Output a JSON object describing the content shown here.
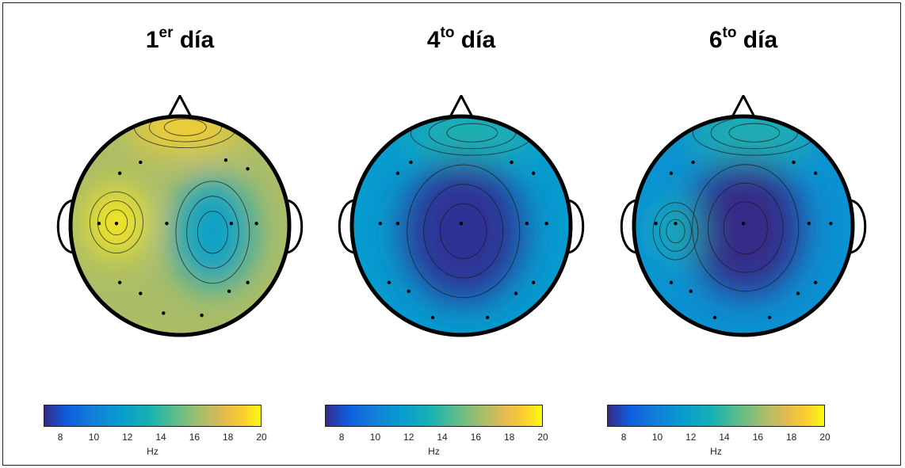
{
  "chart_data": [
    {
      "type": "heatmap",
      "title": "1",
      "title_sup": "er",
      "title_rest": " día",
      "colorbar": {
        "ticks": [
          "8",
          "10",
          "12",
          "14",
          "16",
          "18",
          "20"
        ],
        "label": "Hz",
        "range": [
          7,
          20
        ]
      },
      "background_hz": 16.5,
      "blobs": [
        {
          "cx": -0.58,
          "cy": -0.03,
          "rx": 0.26,
          "ry": 0.3,
          "hz": 19.6
        },
        {
          "cx": 0.3,
          "cy": 0.06,
          "rx": 0.36,
          "ry": 0.5,
          "hz": 12.0
        },
        {
          "cx": 0.05,
          "cy": -0.9,
          "rx": 0.5,
          "ry": 0.2,
          "hz": 19.0
        }
      ],
      "electrodes": [
        [
          -0.36,
          -0.58
        ],
        [
          -0.55,
          -0.48
        ],
        [
          0.42,
          -0.6
        ],
        [
          0.62,
          -0.52
        ],
        [
          -0.74,
          -0.02
        ],
        [
          -0.58,
          -0.02
        ],
        [
          -0.12,
          -0.02
        ],
        [
          0.47,
          -0.02
        ],
        [
          0.7,
          -0.02
        ],
        [
          -0.55,
          0.52
        ],
        [
          -0.36,
          0.62
        ],
        [
          0.45,
          0.6
        ],
        [
          0.62,
          0.52
        ],
        [
          -0.15,
          0.8
        ],
        [
          0.2,
          0.82
        ]
      ]
    },
    {
      "type": "heatmap",
      "title": "4",
      "title_sup": "to",
      "title_rest": " día",
      "colorbar": {
        "ticks": [
          "8",
          "10",
          "12",
          "14",
          "16",
          "18",
          "20"
        ],
        "label": "Hz",
        "range": [
          7,
          20
        ]
      },
      "background_hz": 11.5,
      "blobs": [
        {
          "cx": 0.02,
          "cy": 0.05,
          "rx": 0.55,
          "ry": 0.65,
          "hz": 7.2
        },
        {
          "cx": 0.1,
          "cy": -0.85,
          "rx": 0.6,
          "ry": 0.22,
          "hz": 13.5
        }
      ],
      "electrodes": [
        [
          -0.58,
          -0.48
        ],
        [
          -0.46,
          -0.58
        ],
        [
          0.46,
          -0.58
        ],
        [
          0.66,
          -0.48
        ],
        [
          -0.74,
          -0.02
        ],
        [
          -0.58,
          -0.02
        ],
        [
          0.0,
          -0.02
        ],
        [
          0.6,
          -0.02
        ],
        [
          0.78,
          -0.02
        ],
        [
          -0.66,
          0.52
        ],
        [
          -0.48,
          0.6
        ],
        [
          0.5,
          0.62
        ],
        [
          0.66,
          0.52
        ],
        [
          -0.26,
          0.84
        ],
        [
          0.24,
          0.84
        ]
      ]
    },
    {
      "type": "heatmap",
      "title": "6",
      "title_sup": "to",
      "title_rest": " día",
      "colorbar": {
        "ticks": [
          "8",
          "10",
          "12",
          "14",
          "16",
          "18",
          "20"
        ],
        "label": "Hz",
        "range": [
          7,
          20
        ]
      },
      "background_hz": 11.0,
      "blobs": [
        {
          "cx": 0.02,
          "cy": 0.02,
          "rx": 0.52,
          "ry": 0.62,
          "hz": 7.0
        },
        {
          "cx": -0.62,
          "cy": 0.05,
          "rx": 0.22,
          "ry": 0.28,
          "hz": 13.0
        },
        {
          "cx": 0.1,
          "cy": -0.85,
          "rx": 0.6,
          "ry": 0.22,
          "hz": 13.5
        }
      ],
      "electrodes": [
        [
          -0.66,
          -0.48
        ],
        [
          -0.46,
          -0.58
        ],
        [
          0.46,
          -0.58
        ],
        [
          0.66,
          -0.48
        ],
        [
          -0.8,
          -0.02
        ],
        [
          -0.62,
          -0.02
        ],
        [
          0.0,
          -0.02
        ],
        [
          0.6,
          -0.02
        ],
        [
          0.8,
          -0.02
        ],
        [
          -0.66,
          0.52
        ],
        [
          -0.48,
          0.6
        ],
        [
          0.5,
          0.62
        ],
        [
          0.66,
          0.52
        ],
        [
          -0.26,
          0.84
        ],
        [
          0.24,
          0.84
        ]
      ]
    }
  ]
}
